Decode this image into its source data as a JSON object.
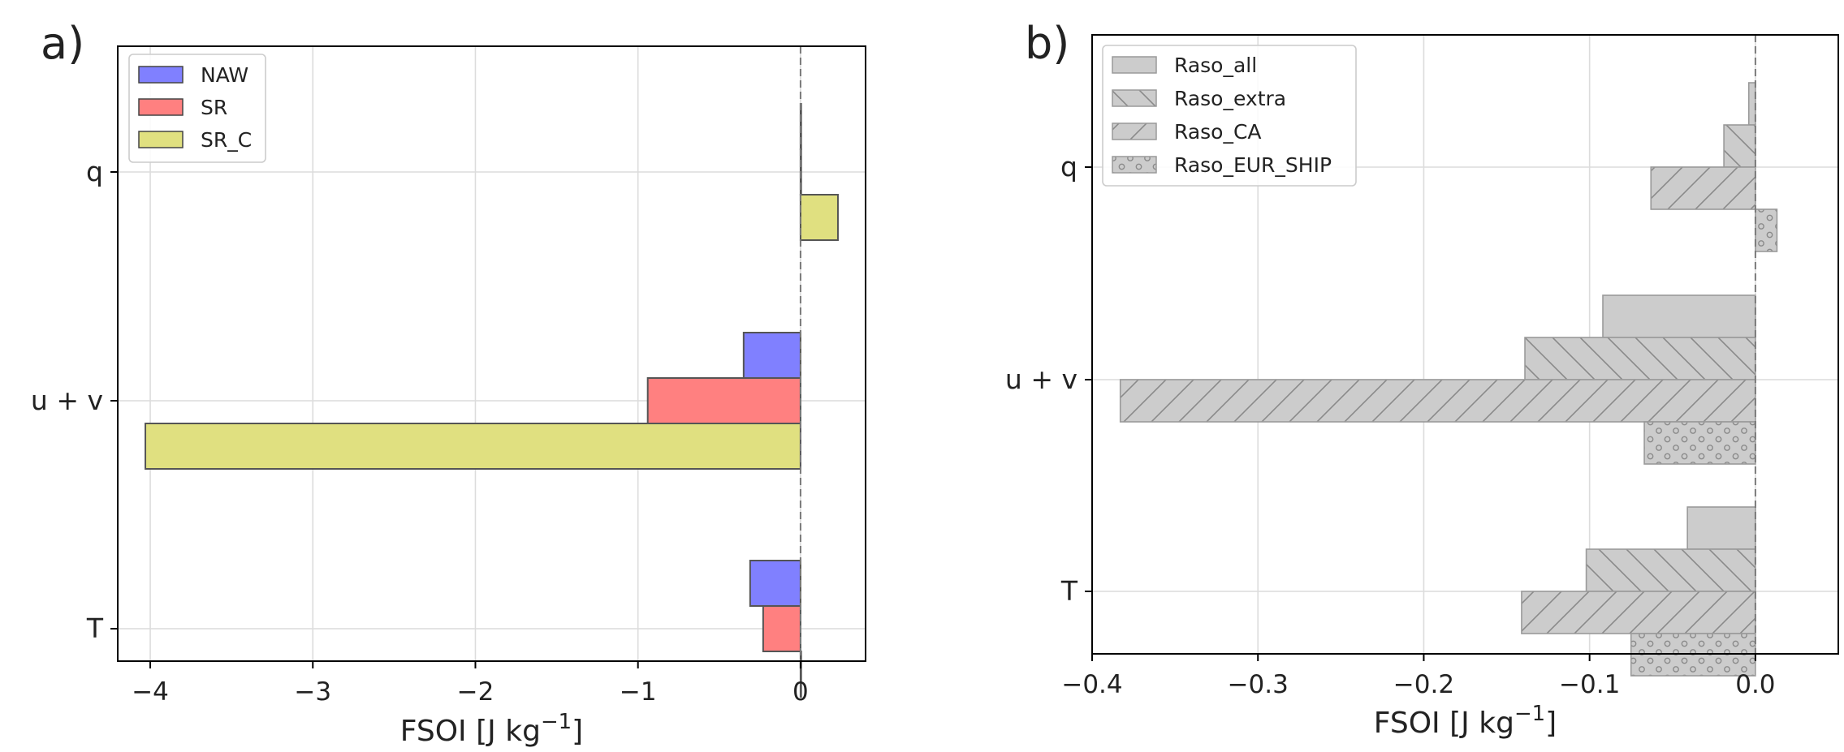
{
  "figure": {
    "panels": [
      "a)",
      "b)"
    ]
  },
  "chart_data": [
    {
      "panel_label": "a)",
      "type": "bar",
      "orientation": "horizontal",
      "categories": [
        "q",
        "u + v",
        "T"
      ],
      "series": [
        {
          "name": "NAW",
          "color": "#8080ff",
          "values": [
            0.0,
            -0.35,
            -0.31
          ]
        },
        {
          "name": "SR",
          "color": "#ff8080",
          "values": [
            0.0,
            -0.94,
            -0.23
          ]
        },
        {
          "name": "SR_C",
          "color": "#e0e080",
          "values": [
            0.23,
            -4.03,
            0.0
          ]
        }
      ],
      "xlabel": "FSOI [J kg⁻¹]",
      "xlim": [
        -4.2,
        0.4
      ],
      "xticks": [
        -4,
        -3,
        -2,
        -1,
        0
      ],
      "xtick_labels": [
        "−4",
        "−3",
        "−2",
        "−1",
        "0"
      ],
      "grid": true,
      "legend": "top-left",
      "reference_line": {
        "x": 0,
        "style": "dashed"
      }
    },
    {
      "panel_label": "b)",
      "type": "bar",
      "orientation": "horizontal",
      "categories": [
        "q",
        "u + v",
        "T"
      ],
      "series": [
        {
          "name": "Raso_all",
          "hatch": "none",
          "values": [
            -0.004,
            -0.092,
            -0.041
          ]
        },
        {
          "name": "Raso_extra",
          "hatch": "backslash",
          "values": [
            -0.019,
            -0.139,
            -0.102
          ]
        },
        {
          "name": "Raso_CA",
          "hatch": "slash",
          "values": [
            -0.063,
            -0.383,
            -0.141
          ]
        },
        {
          "name": "Raso_EUR_SHIP",
          "hatch": "dots",
          "values": [
            0.013,
            -0.067,
            -0.075
          ]
        }
      ],
      "xlabel": "FSOI [J kg⁻¹]",
      "xlim": [
        -0.4,
        0.05
      ],
      "xticks": [
        -0.4,
        -0.3,
        -0.2,
        -0.1,
        0.0
      ],
      "xtick_labels": [
        "−0.4",
        "−0.3",
        "−0.2",
        "−0.1",
        "0.0"
      ],
      "grid": true,
      "legend": "top-left",
      "reference_line": {
        "x": 0,
        "style": "dashed"
      }
    }
  ]
}
